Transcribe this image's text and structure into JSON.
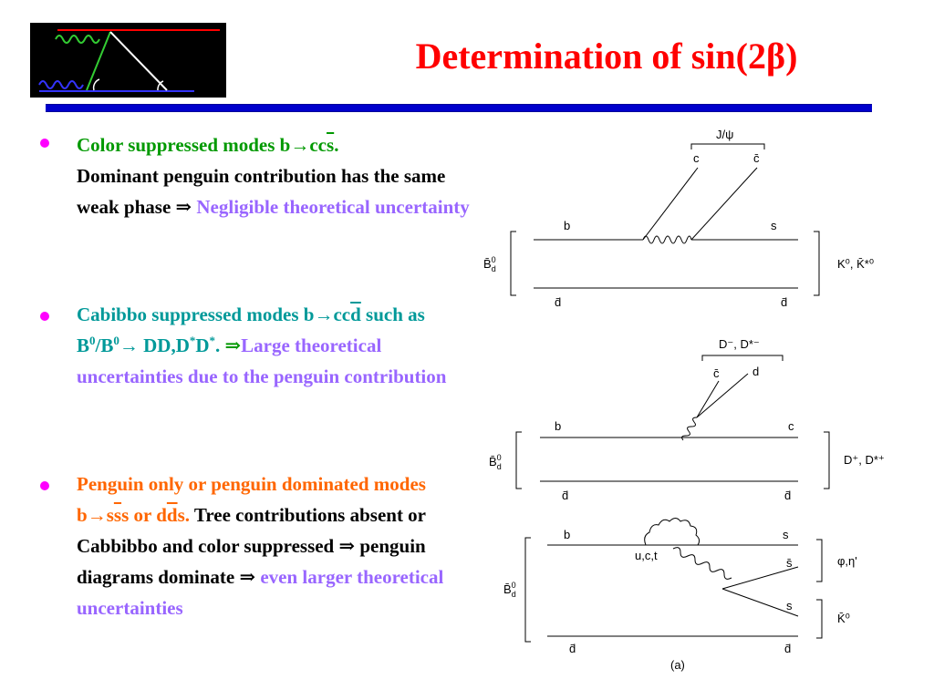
{
  "title": {
    "text": "Determination of sin(2β)"
  },
  "colors": {
    "title": "#ff0000",
    "rule": "#0000cc",
    "bullet_dot": "#ff00ff",
    "green": "#009900",
    "purple": "#9966ff",
    "teal": "#009999",
    "orange": "#ff6600"
  },
  "bullets": [
    {
      "segments": {
        "a": "Color suppressed modes b",
        "arrow": "→",
        "b": "cc",
        "c": "s",
        "d": ".",
        "e": "Dominant penguin contribution has the same weak phase ",
        "imp": "⇒",
        "f": " Negligible theoretical uncertainty"
      }
    },
    {
      "segments": {
        "a": "Cabibbo suppressed modes b",
        "arrow": "→",
        "b": "cc",
        "c": "d",
        "d": " such as B",
        "sup1": "0",
        "e": "/B",
        "sup2": "0",
        "arrow2": "→",
        "f": " DD,D",
        "sup3": "*",
        "g": "D",
        "sup4": "*",
        "h": ". ",
        "imp": "⇒",
        "i": "Large theoretical uncertainties due to the penguin contribution"
      }
    },
    {
      "segments": {
        "a": "Penguin only or penguin dominated modes b",
        "arrow": "→",
        "b": "s",
        "c": "s",
        "d": "s",
        "e": " or d",
        "f": "d",
        "g": "s.",
        "h": " Tree contributions absent or Cabbibbo and color suppressed ",
        "imp": "⇒",
        "i": " penguin diagrams dominate ",
        "imp2": "⇒",
        "j": " even larger theoretical uncertainties"
      }
    }
  ],
  "diagram1": {
    "top_label": "J/ψ",
    "c1": "c",
    "c2": "c̄",
    "b": "b",
    "s": "s",
    "dbar_l": "d̄",
    "dbar_r": "d̄",
    "meson_left": "B̄",
    "meson_left_sup": "0",
    "meson_left_sub": "d",
    "meson_right": "K⁰, K̄*⁰"
  },
  "diagram2": {
    "top_label": "D⁻, D*⁻",
    "cbar": "c̄",
    "d": "d",
    "b": "b",
    "c": "c",
    "dbar_l": "d̄",
    "dbar_r": "d̄",
    "meson_left": "B̄",
    "meson_left_sup": "0",
    "meson_left_sub": "d",
    "meson_right": "D⁺, D*⁺"
  },
  "diagram3": {
    "b": "b",
    "s_top": "s",
    "uct": "u,c,t",
    "sbar": "s̄",
    "s_mid": "s",
    "dbar_l": "d̄",
    "dbar_r": "d̄",
    "meson_left": "B̄",
    "meson_left_sup": "0",
    "meson_left_sub": "d",
    "right_top": "φ,η'",
    "right_bottom": "K̄⁰",
    "caption": "(a)"
  }
}
